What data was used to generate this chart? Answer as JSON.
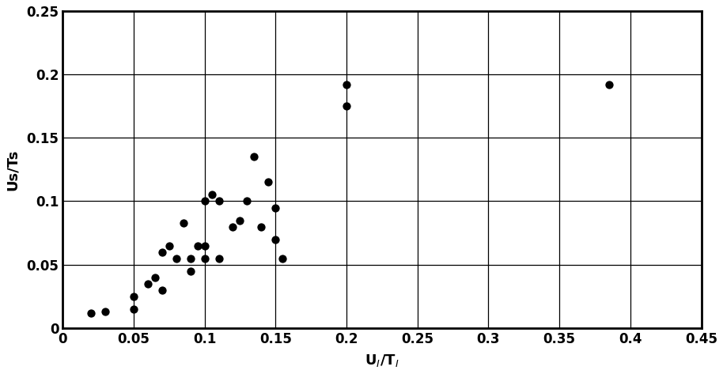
{
  "x": [
    0.02,
    0.03,
    0.05,
    0.05,
    0.06,
    0.065,
    0.07,
    0.07,
    0.075,
    0.08,
    0.085,
    0.09,
    0.09,
    0.095,
    0.1,
    0.1,
    0.1,
    0.105,
    0.11,
    0.11,
    0.12,
    0.125,
    0.13,
    0.135,
    0.14,
    0.145,
    0.15,
    0.15,
    0.155,
    0.2,
    0.2,
    0.385
  ],
  "y": [
    0.012,
    0.013,
    0.025,
    0.015,
    0.035,
    0.04,
    0.03,
    0.06,
    0.065,
    0.055,
    0.083,
    0.045,
    0.055,
    0.065,
    0.055,
    0.065,
    0.1,
    0.105,
    0.1,
    0.055,
    0.08,
    0.085,
    0.1,
    0.135,
    0.08,
    0.115,
    0.07,
    0.095,
    0.055,
    0.175,
    0.192,
    0.192
  ],
  "xlabel": "U$_I$/T$_I$",
  "ylabel": "Us/Ts",
  "xlim": [
    0,
    0.45
  ],
  "ylim": [
    0,
    0.25
  ],
  "xticks": [
    0,
    0.05,
    0.1,
    0.15,
    0.2,
    0.25,
    0.3,
    0.35,
    0.4,
    0.45
  ],
  "xtick_labels": [
    "0",
    "0.05",
    "0.1",
    "0.15",
    "0.2",
    "0.25",
    "0.3",
    "0.35",
    "0.4",
    "0.45"
  ],
  "yticks": [
    0,
    0.05,
    0.1,
    0.15,
    0.2,
    0.25
  ],
  "ytick_labels": [
    "0",
    "0.05",
    "0.1",
    "0.15",
    "0.2",
    "0.25"
  ],
  "marker_color": "black",
  "marker_size": 55,
  "background_color": "white",
  "grid": true,
  "figwidth": 9.14,
  "figheight": 4.73,
  "dpi": 100
}
